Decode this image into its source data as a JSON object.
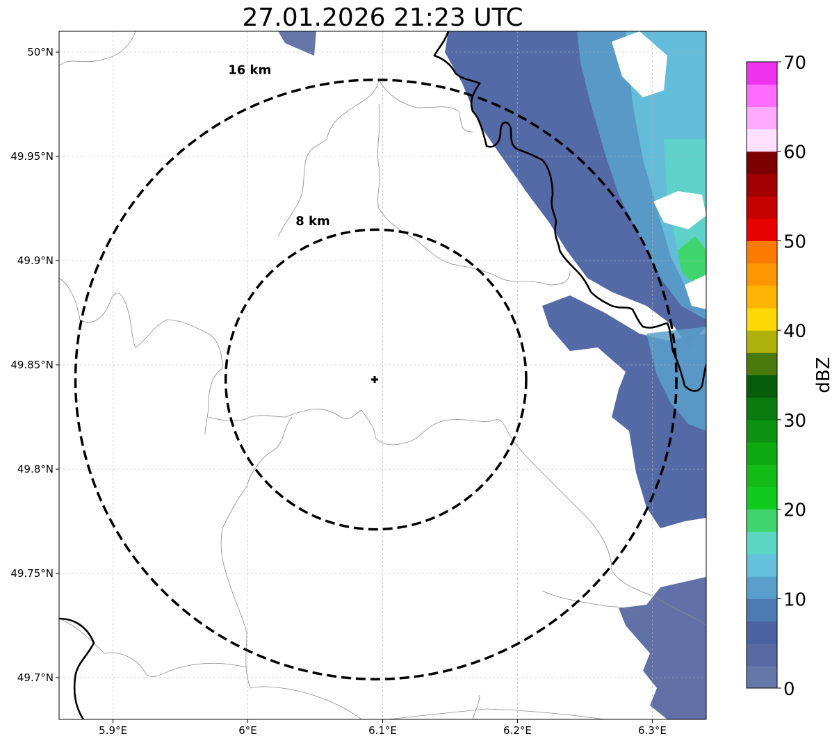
{
  "title": "27.01.2026 21:23 UTC",
  "map": {
    "center": {
      "lon": 6.095,
      "lat": 49.843
    },
    "xlim": [
      5.86,
      6.34
    ],
    "ylim": [
      49.68,
      50.01
    ],
    "x_ticks": [
      5.9,
      6.0,
      6.1,
      6.2,
      6.3
    ],
    "x_tick_labels": [
      "5.9°E",
      "6°E",
      "6.1°E",
      "6.2°E",
      "6.3°E"
    ],
    "y_ticks": [
      49.7,
      49.75,
      49.8,
      49.85,
      49.9,
      49.95,
      50.0
    ],
    "y_tick_labels": [
      "49.7°N",
      "49.75°N",
      "49.8°N",
      "49.85°N",
      "49.9°N",
      "49.95°N",
      "50°N"
    ],
    "gridlines": true,
    "range_rings": [
      {
        "radius_km": 8,
        "label": "8 km"
      },
      {
        "radius_km": 16,
        "label": "16 km"
      }
    ],
    "center_marker": "plus-icon"
  },
  "colorbar": {
    "label": "dBZ",
    "min": 0,
    "max": 70,
    "step": 2.5,
    "ticks": [
      0,
      10,
      20,
      30,
      40,
      50,
      60,
      70
    ],
    "colors": [
      "#6577a8",
      "#5869a3",
      "#4a62a2",
      "#4b7bb2",
      "#5a9fcb",
      "#65c2dc",
      "#5cd6c4",
      "#3fd56c",
      "#12c91e",
      "#12bb16",
      "#0ea811",
      "#0d9311",
      "#0b7a0f",
      "#075e0a",
      "#4a7a0b",
      "#afb10b",
      "#fed905",
      "#feb405",
      "#fe9603",
      "#fe7b03",
      "#e80101",
      "#c50101",
      "#a10101",
      "#7e0101",
      "#ffe1ff",
      "#ffaaff",
      "#ff6cff",
      "#ee33ee"
    ]
  }
}
